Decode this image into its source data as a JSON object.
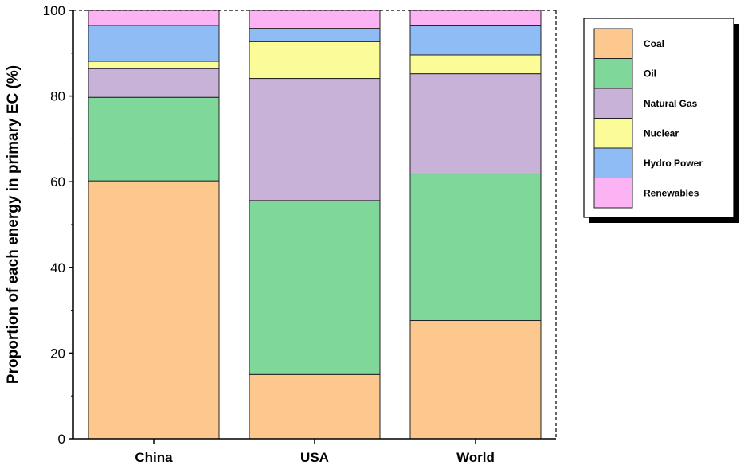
{
  "chart_data": {
    "type": "bar",
    "stacked": true,
    "categories": [
      "China",
      "USA",
      "World"
    ],
    "series": [
      {
        "name": "Coal",
        "color": "#fcc88e",
        "values": [
          60.2,
          15.0,
          27.6
        ]
      },
      {
        "name": "Oil",
        "color": "#7fd89a",
        "values": [
          19.5,
          40.6,
          34.2
        ]
      },
      {
        "name": "Natural Gas",
        "color": "#c8b2d8",
        "values": [
          6.7,
          28.5,
          23.4
        ]
      },
      {
        "name": "Nuclear",
        "color": "#fbfc97",
        "values": [
          1.7,
          8.6,
          4.4
        ]
      },
      {
        "name": "Hydro Power",
        "color": "#8fbcf5",
        "values": [
          8.4,
          3.1,
          6.8
        ]
      },
      {
        "name": "Renewables",
        "color": "#fcb3f3",
        "values": [
          3.5,
          4.2,
          3.6
        ]
      }
    ],
    "title": "",
    "xlabel": "",
    "ylabel": "Proportion of each energy in primary EC (%)",
    "ylim": [
      0,
      100
    ],
    "yticks": [
      "0",
      "20",
      "40",
      "60",
      "80",
      "100"
    ],
    "grid": false,
    "legend_position": "top-right"
  }
}
